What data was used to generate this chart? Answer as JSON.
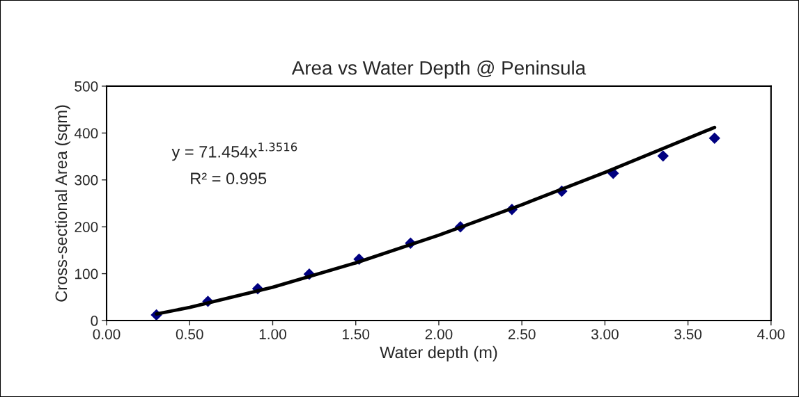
{
  "chart_data": {
    "type": "scatter",
    "title": "Area vs Water Depth @ Peninsula",
    "xlabel": "Water depth (m)",
    "ylabel": "Cross-sectional Area (sqm)",
    "x": [
      0.3,
      0.61,
      0.91,
      1.22,
      1.52,
      1.83,
      2.13,
      2.44,
      2.74,
      3.05,
      3.35,
      3.66
    ],
    "series": [
      {
        "color": "#000080",
        "marker": "diamond",
        "values": [
          12,
          41,
          68,
          99,
          131,
          165,
          200,
          237,
          276,
          314,
          351,
          389
        ]
      },
      {
        "type": "line",
        "color": "#000000",
        "marker": "none",
        "line_style": "solid",
        "x": [
          0.3,
          0.5,
          1.0,
          1.5,
          2.0,
          2.5,
          3.0,
          3.66
        ],
        "values": [
          14,
          28,
          71,
          123,
          182,
          247,
          316,
          412
        ]
      }
    ],
    "annotations": [
      "y = 71.454x$^{1.3516}$",
      "R² = 0.995"
    ],
    "xlim": [
      0,
      4
    ],
    "xticks": [
      {
        "value": 0,
        "label": "0.00"
      },
      {
        "value": 0.5,
        "label": "0.50"
      },
      {
        "value": 1,
        "label": "1.00"
      },
      {
        "value": 1.5,
        "label": "1.50"
      },
      {
        "value": 2,
        "label": "2.00"
      },
      {
        "value": 2.5,
        "label": "2.50"
      },
      {
        "value": 3,
        "label": "3.00"
      },
      {
        "value": 3.5,
        "label": "3.50"
      },
      {
        "value": 4,
        "label": "4.00"
      }
    ],
    "ylim": [
      0,
      500
    ],
    "yticks": [
      0,
      100,
      200,
      300,
      400,
      500
    ],
    "grid": false,
    "legend": false
  }
}
